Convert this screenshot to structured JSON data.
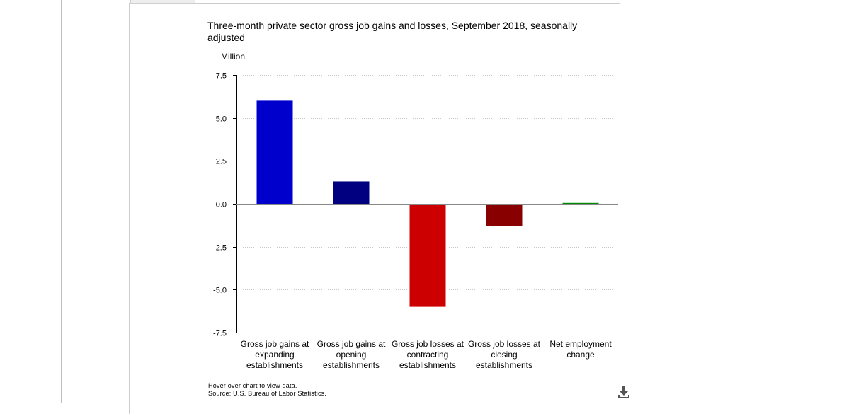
{
  "title": "Three-month private sector gross job gains and losses, September 2018, seasonally adjusted",
  "hover_note": "Hover over chart to view data.",
  "source": "Source: U.S. Bureau of Labor Statistics.",
  "download_icon": "download-icon",
  "chart_data": {
    "type": "bar",
    "title": "Three-month private sector gross job gains and losses, September 2018, seasonally adjusted",
    "ylabel": "Million",
    "xlabel": "",
    "ylim": [
      -7.5,
      7.5
    ],
    "yticks": [
      "7.5",
      "5.0",
      "2.5",
      "0.0",
      "-2.5",
      "-5.0",
      "-7.5"
    ],
    "ytick_values": [
      7.5,
      5.0,
      2.5,
      0.0,
      -2.5,
      -5.0,
      -7.5
    ],
    "grid": true,
    "categories": [
      [
        "Gross job gains at",
        "expanding",
        "establishments"
      ],
      [
        "Gross job gains at",
        "opening",
        "establishments"
      ],
      [
        "Gross job losses at",
        "contracting",
        "establishments"
      ],
      [
        "Gross job losses at",
        "closing",
        "establishments"
      ],
      [
        "Net employment",
        "change"
      ]
    ],
    "values": [
      6.0,
      1.3,
      -6.0,
      -1.3,
      0.05
    ],
    "colors": [
      "#0000cc",
      "#000080",
      "#cc0000",
      "#880000",
      "#008800"
    ]
  }
}
